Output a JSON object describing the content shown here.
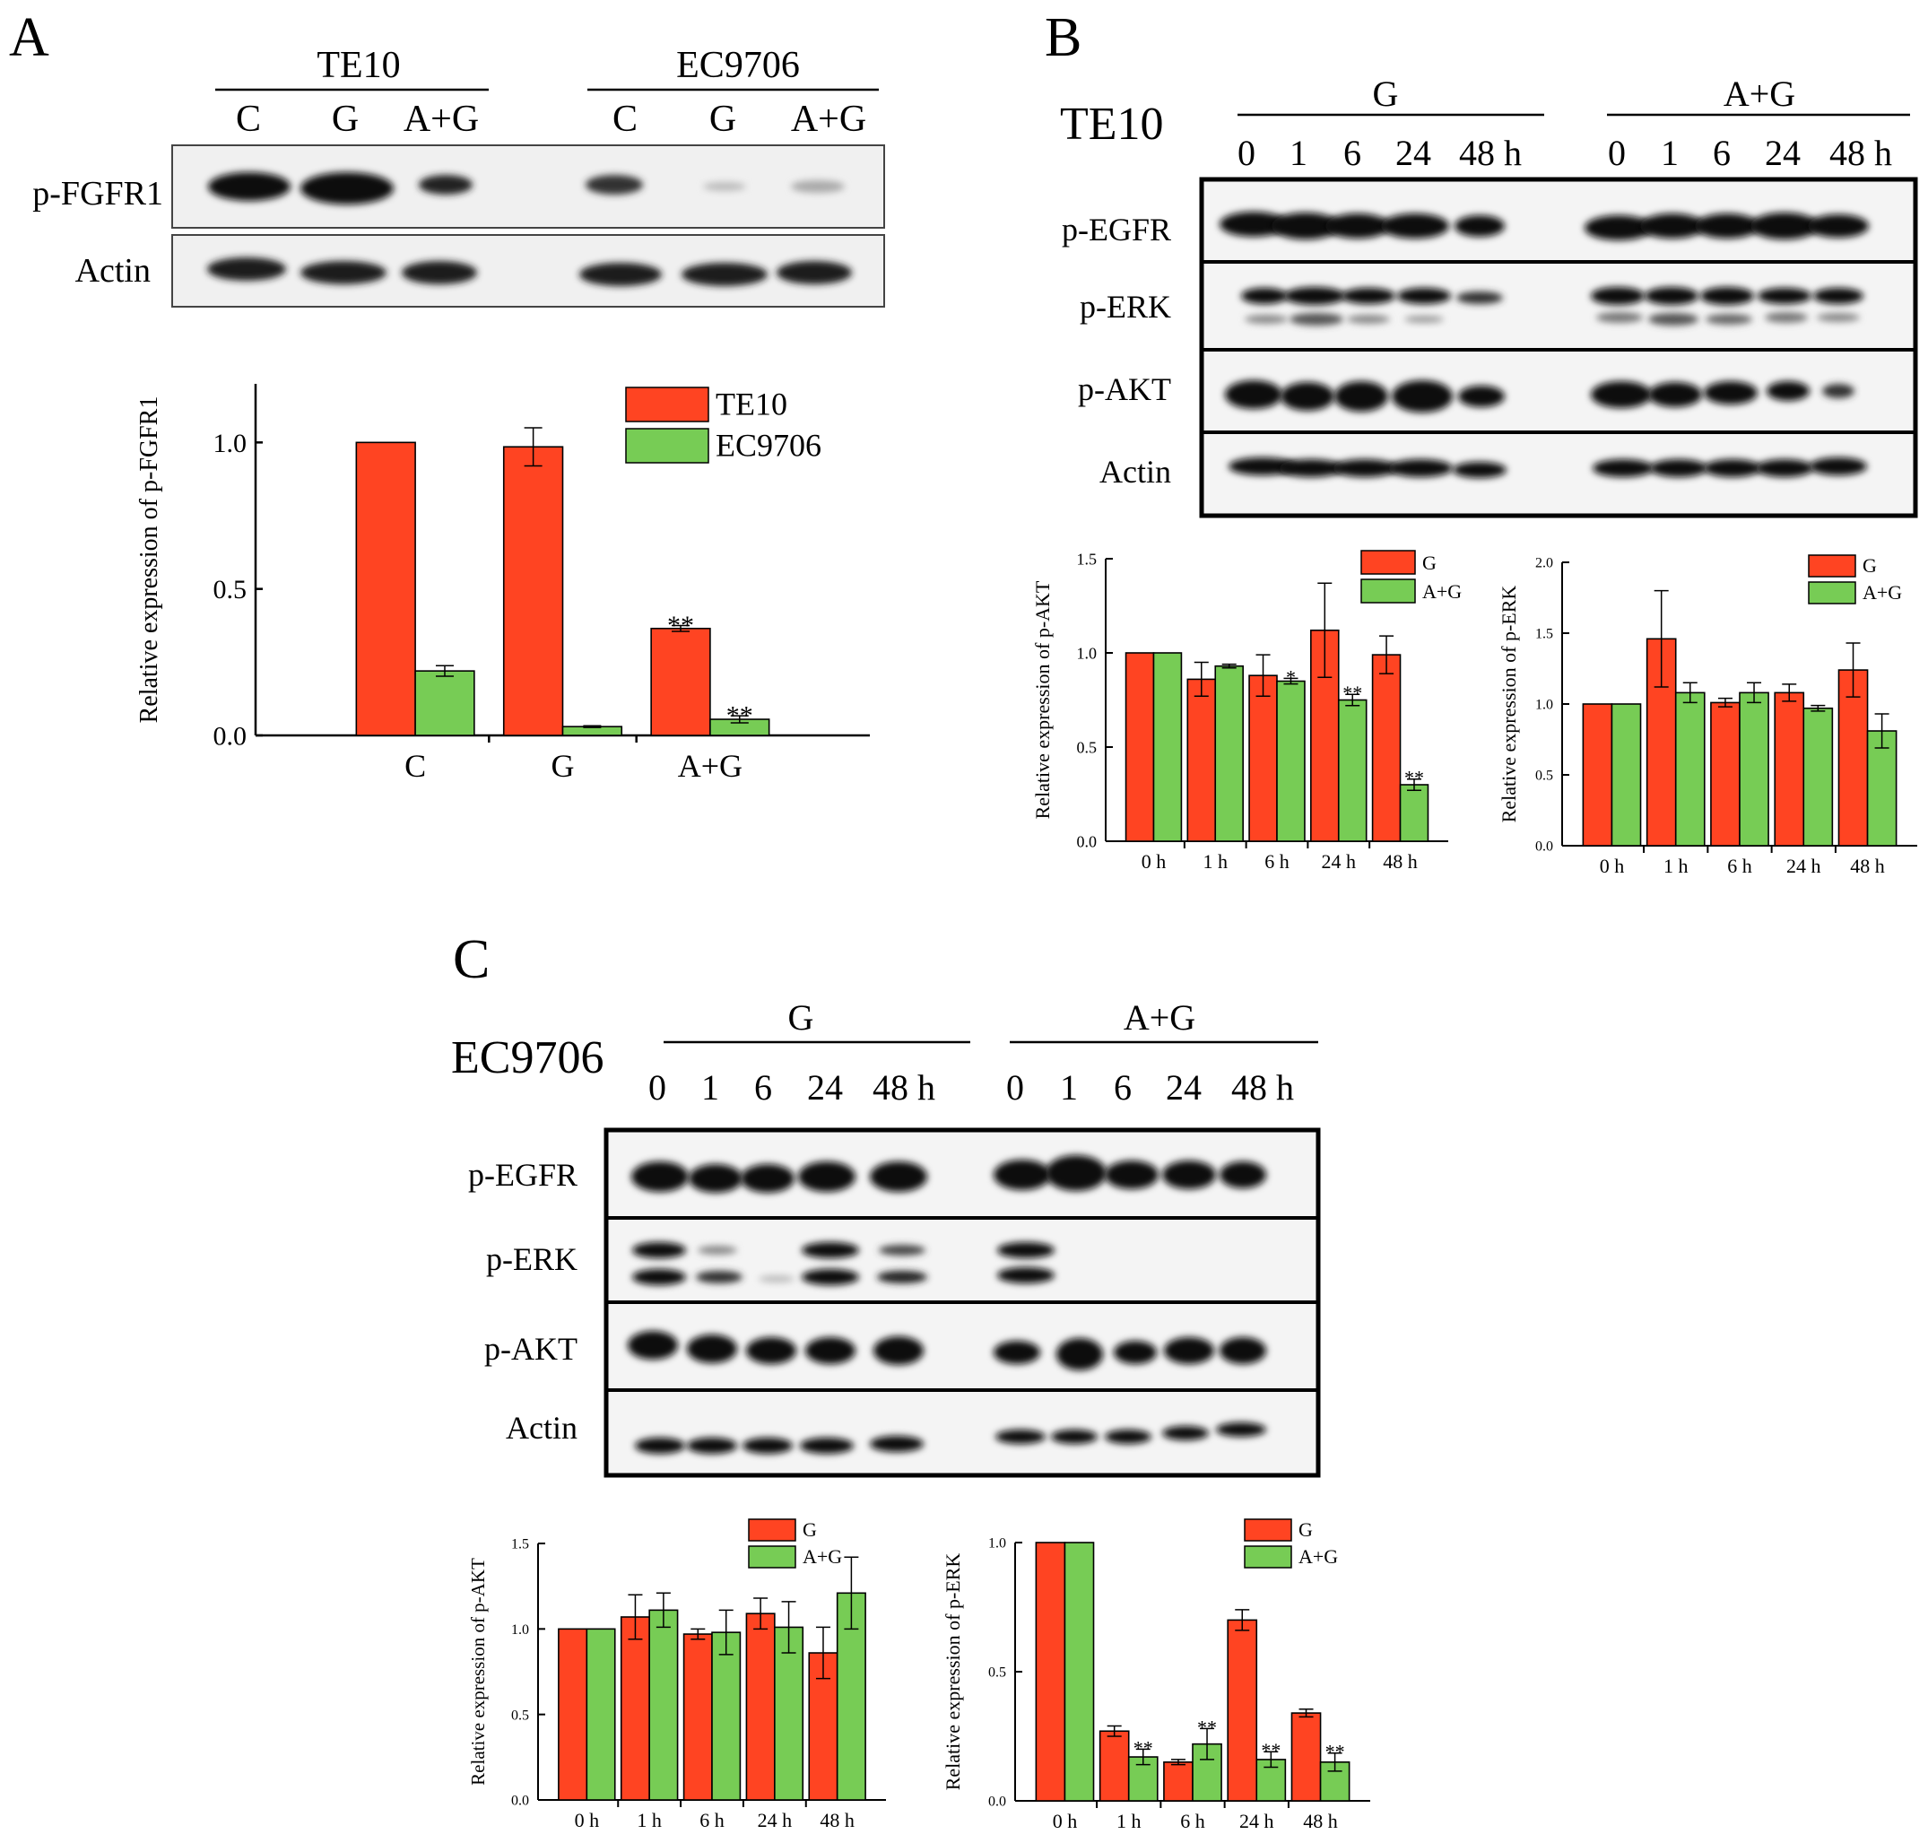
{
  "colors": {
    "red": "#FF4422",
    "green": "#77CC55",
    "blot_bg": "#f1f1f1",
    "band": "#111111"
  },
  "panel_A": {
    "letter": "A",
    "groups": [
      "TE10",
      "EC9706"
    ],
    "lanes": [
      "C",
      "G",
      "A+G",
      "C",
      "G",
      "A+G"
    ],
    "rows": [
      "p-FGFR1",
      "Actin"
    ]
  },
  "panel_B": {
    "letter": "B",
    "cell_line": "TE10",
    "groups": [
      "G",
      "A+G"
    ],
    "lanes": [
      "0",
      "1",
      "6",
      "24",
      "48 h",
      "0",
      "1",
      "6",
      "24",
      "48 h"
    ],
    "rows": [
      "p-EGFR",
      "p-ERK",
      "p-AKT",
      "Actin"
    ]
  },
  "panel_C": {
    "letter": "C",
    "cell_line": "EC9706",
    "groups": [
      "G",
      "A+G"
    ],
    "lanes": [
      "0",
      "1",
      "6",
      "24",
      "48 h",
      "0",
      "1",
      "6",
      "24",
      "48 h"
    ],
    "rows": [
      "p-EGFR",
      "p-ERK",
      "p-AKT",
      "Actin"
    ]
  },
  "chart_data": [
    {
      "id": "A_chart",
      "type": "bar",
      "categories": [
        "C",
        "G",
        "A+G"
      ],
      "ylabel": "Relative expression of p-FGFR1",
      "ylim": [
        0,
        1.2
      ],
      "yticks": [
        0.0,
        0.5,
        1.0
      ],
      "ytick_labels": [
        "0.0",
        "0.5",
        "1.0"
      ],
      "legend_position": "top-right",
      "series": [
        {
          "name": "TE10",
          "color": "red",
          "values": [
            1.0,
            0.985,
            0.365
          ],
          "errors": [
            0,
            0.065,
            0.01
          ],
          "stars": [
            "",
            "",
            "**"
          ]
        },
        {
          "name": "EC9706",
          "color": "green",
          "values": [
            0.22,
            0.03,
            0.055
          ],
          "errors": [
            0.018,
            0.003,
            0.012
          ],
          "stars": [
            "",
            "",
            "**"
          ]
        }
      ]
    },
    {
      "id": "B_akt",
      "type": "bar",
      "categories": [
        "0 h",
        "1 h",
        "6 h",
        "24 h",
        "48 h"
      ],
      "ylabel": "Relative expression of p-AKT",
      "ylim": [
        0,
        1.5
      ],
      "yticks": [
        0.0,
        0.5,
        1.0,
        1.5
      ],
      "ytick_labels": [
        "0.0",
        "0.5",
        "1.0",
        "1.5"
      ],
      "legend_position": "top-right",
      "series": [
        {
          "name": "G",
          "color": "red",
          "values": [
            1.0,
            0.86,
            0.88,
            1.12,
            0.99
          ],
          "errors": [
            0,
            0.09,
            0.11,
            0.25,
            0.1
          ],
          "stars": [
            "",
            "",
            "",
            "",
            ""
          ]
        },
        {
          "name": "A+G",
          "color": "green",
          "values": [
            1.0,
            0.93,
            0.85,
            0.75,
            0.3
          ],
          "errors": [
            0,
            0.01,
            0.015,
            0.03,
            0.03
          ],
          "stars": [
            "",
            "",
            "*",
            "**",
            "**"
          ]
        }
      ]
    },
    {
      "id": "B_erk",
      "type": "bar",
      "categories": [
        "0 h",
        "1 h",
        "6 h",
        "24 h",
        "48 h"
      ],
      "ylabel": "Relative expression of p-ERK",
      "ylim": [
        0,
        2.0
      ],
      "yticks": [
        0.0,
        0.5,
        1.0,
        1.5,
        2.0
      ],
      "ytick_labels": [
        "0.0",
        "0.5",
        "1.0",
        "1.5",
        "2.0"
      ],
      "legend_position": "top-right",
      "series": [
        {
          "name": "G",
          "color": "red",
          "values": [
            1.0,
            1.46,
            1.01,
            1.08,
            1.24
          ],
          "errors": [
            0,
            0.34,
            0.03,
            0.06,
            0.19
          ],
          "stars": [
            "",
            "",
            "",
            "",
            ""
          ]
        },
        {
          "name": "A+G",
          "color": "green",
          "values": [
            1.0,
            1.08,
            1.08,
            0.97,
            0.81
          ],
          "errors": [
            0,
            0.07,
            0.07,
            0.02,
            0.12
          ],
          "stars": [
            "",
            "",
            "",
            "",
            ""
          ]
        }
      ]
    },
    {
      "id": "C_akt",
      "type": "bar",
      "categories": [
        "0 h",
        "1 h",
        "6 h",
        "24 h",
        "48 h"
      ],
      "ylabel": "Relative expression of p-AKT",
      "ylim": [
        0,
        1.5
      ],
      "yticks": [
        0.0,
        0.5,
        1.0,
        1.5
      ],
      "ytick_labels": [
        "0.0",
        "0.5",
        "1.0",
        "1.5"
      ],
      "legend_position": "top-right",
      "series": [
        {
          "name": "G",
          "color": "red",
          "values": [
            1.0,
            1.07,
            0.97,
            1.09,
            0.86
          ],
          "errors": [
            0,
            0.13,
            0.03,
            0.09,
            0.15
          ],
          "stars": [
            "",
            "",
            "",
            "",
            ""
          ]
        },
        {
          "name": "A+G",
          "color": "green",
          "values": [
            1.0,
            1.11,
            0.98,
            1.01,
            1.21
          ],
          "errors": [
            0,
            0.1,
            0.13,
            0.15,
            0.21
          ],
          "stars": [
            "",
            "",
            "",
            "",
            ""
          ]
        }
      ]
    },
    {
      "id": "C_erk",
      "type": "bar",
      "categories": [
        "0 h",
        "1 h",
        "6 h",
        "24 h",
        "48 h"
      ],
      "ylabel": "Relative expression of p-ERK",
      "ylim": [
        0,
        1.0
      ],
      "yticks": [
        0.0,
        0.5,
        1.0
      ],
      "ytick_labels": [
        "0.0",
        "0.5",
        "1.0"
      ],
      "legend_position": "top-right",
      "series": [
        {
          "name": "G",
          "color": "red",
          "values": [
            1.0,
            0.27,
            0.15,
            0.7,
            0.34
          ],
          "errors": [
            0,
            0.02,
            0.01,
            0.04,
            0.015
          ],
          "stars": [
            "",
            "",
            "",
            "",
            ""
          ]
        },
        {
          "name": "A+G",
          "color": "green",
          "values": [
            1.0,
            0.17,
            0.22,
            0.16,
            0.15
          ],
          "errors": [
            0,
            0.03,
            0.06,
            0.03,
            0.035
          ],
          "stars": [
            "",
            "**",
            "**",
            "**",
            "**"
          ]
        }
      ]
    }
  ]
}
